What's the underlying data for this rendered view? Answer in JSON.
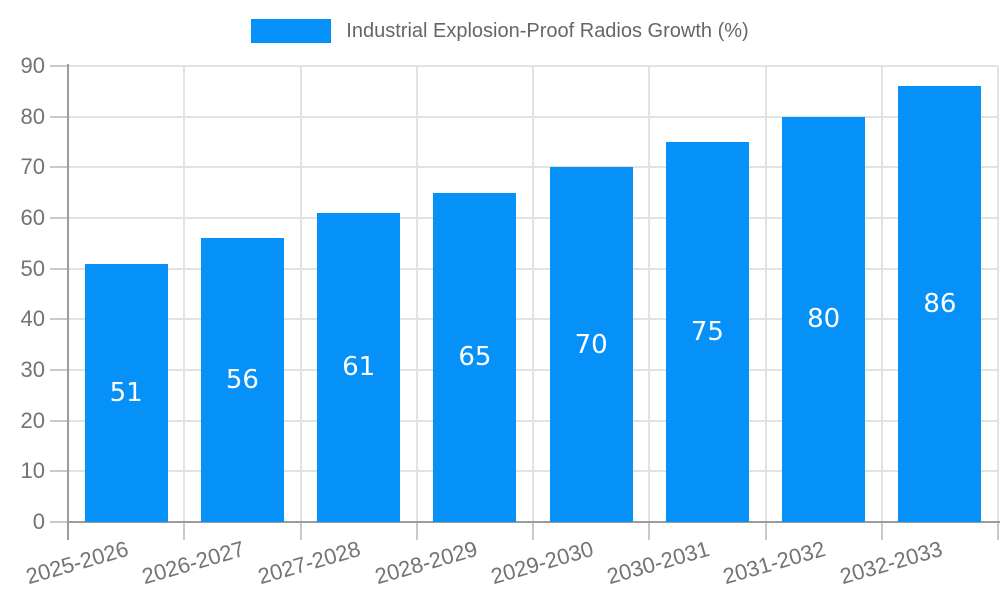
{
  "chart_data": {
    "type": "bar",
    "title": "",
    "legend_label": "Industrial Explosion-Proof Radios Growth (%)",
    "legend_position": "top-center",
    "categories": [
      "2025-2026",
      "2026-2027",
      "2027-2028",
      "2028-2029",
      "2029-2030",
      "2030-2031",
      "2031-2032",
      "2032-2033"
    ],
    "values": [
      51,
      56,
      61,
      65,
      70,
      75,
      80,
      86
    ],
    "value_labels_shown": true,
    "xlabel": "",
    "ylabel": "",
    "ylim": [
      0,
      90
    ],
    "yticks": [
      0,
      10,
      20,
      30,
      40,
      50,
      60,
      70,
      80,
      90
    ],
    "grid": true,
    "x_label_rotation_deg": -16,
    "colors": {
      "bar": "#0691f8",
      "value_label": "#ffffff",
      "axis_tick_label": "#737373",
      "legend_label": "#666666",
      "gridline": "#e2e2e2",
      "axis_line": "#9c9c9c",
      "tick_mark": "#c9c9c9",
      "background": "#ffffff"
    }
  }
}
